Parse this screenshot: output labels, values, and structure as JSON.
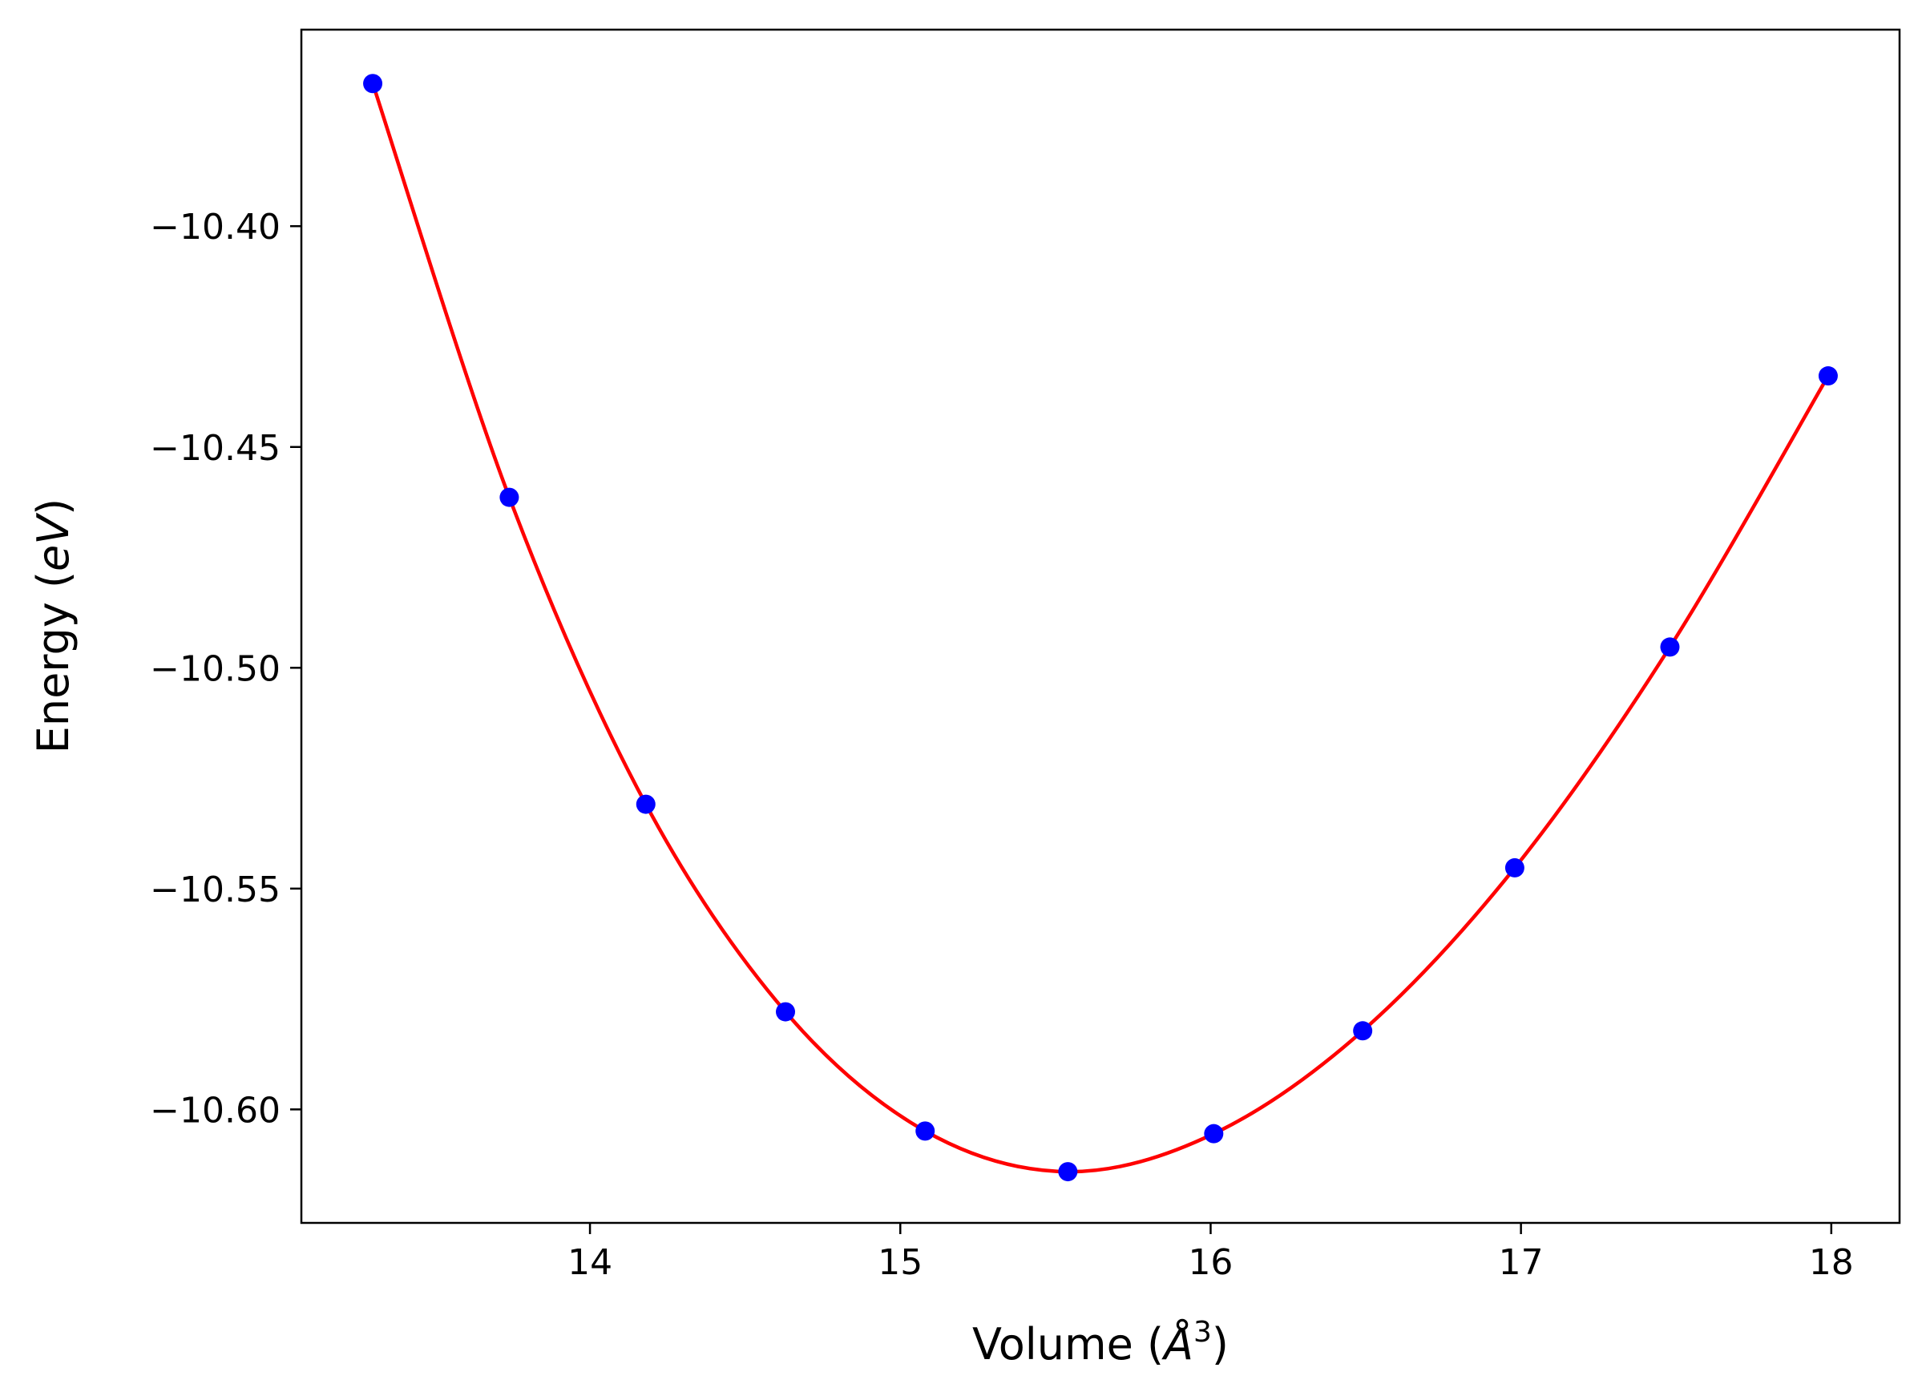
{
  "chart_data": {
    "type": "scatter",
    "title": "",
    "xlabel_parts": {
      "prefix": "Volume (",
      "symbol": "Å",
      "exponent": "3",
      "suffix": ")"
    },
    "ylabel_parts": {
      "prefix": "Energy (",
      "unit": "eV",
      "suffix": ")"
    },
    "xlim": [
      13.07,
      18.22
    ],
    "ylim": [
      -10.6257,
      -10.3555
    ],
    "xticks": [
      {
        "value": 14,
        "label": "14"
      },
      {
        "value": 15,
        "label": "15"
      },
      {
        "value": 16,
        "label": "16"
      },
      {
        "value": 17,
        "label": "17"
      },
      {
        "value": 18,
        "label": "18"
      }
    ],
    "yticks": [
      {
        "value": -10.4,
        "label": "−10.40"
      },
      {
        "value": -10.45,
        "label": "−10.45"
      },
      {
        "value": -10.5,
        "label": "−10.50"
      },
      {
        "value": -10.55,
        "label": "−10.55"
      },
      {
        "value": -10.6,
        "label": "−10.60"
      }
    ],
    "grid": false,
    "legend": "none",
    "series": [
      {
        "kind": "points",
        "color": "#0000ff",
        "x": [
          13.3,
          13.74,
          14.18,
          14.63,
          15.08,
          15.54,
          16.01,
          16.49,
          16.98,
          17.48,
          17.99
        ],
        "y": [
          -10.3677,
          -10.4614,
          -10.5309,
          -10.5779,
          -10.6049,
          -10.6141,
          -10.6055,
          -10.5822,
          -10.5453,
          -10.4953,
          -10.4339
        ]
      },
      {
        "kind": "fit-curve",
        "color": "#ff0000"
      }
    ]
  }
}
